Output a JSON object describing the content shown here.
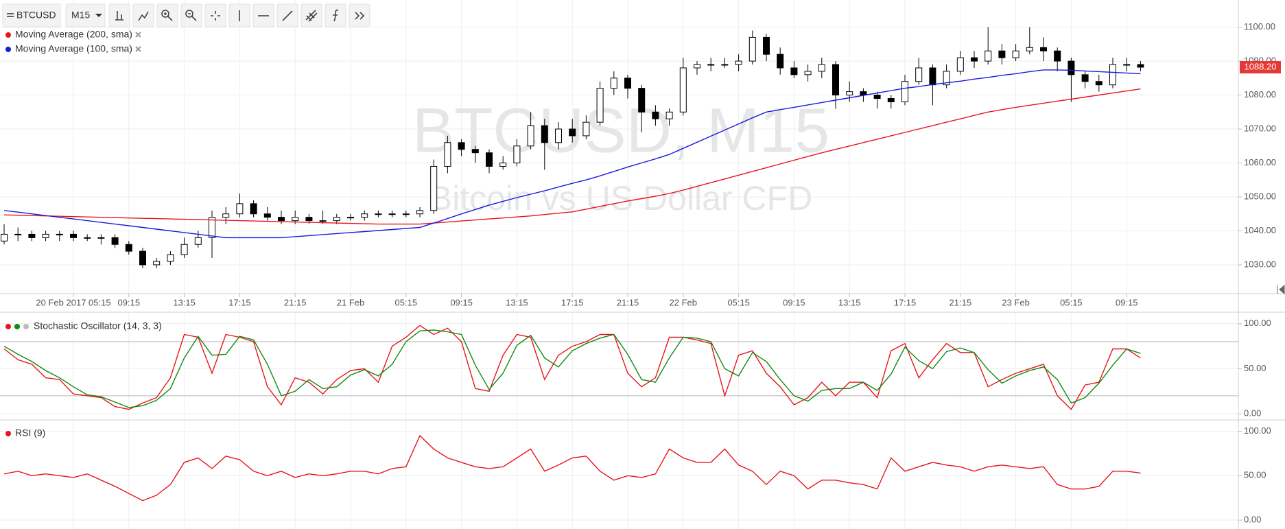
{
  "chart_data": [
    {
      "type": "candlestick",
      "title": "BTCUSD, M15",
      "subtitle": "Bitcoin vs US Dollar CFD",
      "symbol": "BTCUSD",
      "interval": "M15",
      "categories": [
        null,
        null,
        null,
        null,
        null,
        "20 Feb 2017 05:15",
        null,
        null,
        null,
        "09:15",
        null,
        null,
        null,
        "13:15",
        null,
        null,
        null,
        "17:15",
        null,
        null,
        null,
        "21:15",
        null,
        null,
        null,
        "21 Feb",
        null,
        null,
        null,
        "05:15",
        null,
        null,
        null,
        "09:15",
        null,
        null,
        null,
        "13:15",
        null,
        null,
        null,
        "17:15",
        null,
        null,
        null,
        "21:15",
        null,
        null,
        null,
        "22 Feb",
        null,
        null,
        null,
        "05:15",
        null,
        null,
        null,
        "09:15",
        null,
        null,
        null,
        "13:15",
        null,
        null,
        null,
        "17:15",
        null,
        null,
        null,
        "21:15",
        null,
        null,
        null,
        "23 Feb",
        null,
        null,
        null,
        "05:15",
        null,
        null,
        null,
        "09:15",
        null
      ],
      "candles": [
        [
          1037,
          1042,
          1036,
          1039
        ],
        [
          1039,
          1041,
          1037,
          1039
        ],
        [
          1039,
          1040,
          1037,
          1038
        ],
        [
          1038,
          1040,
          1037,
          1039
        ],
        [
          1039,
          1040,
          1037,
          1039
        ],
        [
          1039,
          1040,
          1037,
          1038
        ],
        [
          1038,
          1039,
          1037,
          1038
        ],
        [
          1038,
          1039,
          1036,
          1038
        ],
        [
          1038,
          1039,
          1035,
          1036
        ],
        [
          1036,
          1037,
          1033,
          1034
        ],
        [
          1034,
          1035,
          1029,
          1030
        ],
        [
          1030,
          1032,
          1029,
          1031
        ],
        [
          1031,
          1034,
          1030,
          1033
        ],
        [
          1033,
          1038,
          1032,
          1036
        ],
        [
          1036,
          1040,
          1035,
          1038
        ],
        [
          1038,
          1046,
          1032,
          1044
        ],
        [
          1044,
          1047,
          1042,
          1045
        ],
        [
          1045,
          1051,
          1044,
          1048
        ],
        [
          1048,
          1049,
          1044,
          1045
        ],
        [
          1045,
          1047,
          1043,
          1044
        ],
        [
          1044,
          1046,
          1042,
          1043
        ],
        [
          1043,
          1046,
          1042,
          1044
        ],
        [
          1044,
          1045,
          1042,
          1043
        ],
        [
          1043,
          1046,
          1042,
          1043
        ],
        [
          1043,
          1045,
          1042,
          1044
        ],
        [
          1044,
          1045,
          1043,
          1044
        ],
        [
          1044,
          1046,
          1043,
          1045
        ],
        [
          1045,
          1046,
          1044,
          1045
        ],
        [
          1045,
          1046,
          1044,
          1045
        ],
        [
          1045,
          1046,
          1044,
          1045
        ],
        [
          1045,
          1047,
          1044,
          1046
        ],
        [
          1046,
          1061,
          1045,
          1059
        ],
        [
          1059,
          1068,
          1057,
          1066
        ],
        [
          1066,
          1067,
          1062,
          1064
        ],
        [
          1064,
          1065,
          1060,
          1063
        ],
        [
          1063,
          1064,
          1057,
          1059
        ],
        [
          1059,
          1062,
          1058,
          1060
        ],
        [
          1060,
          1067,
          1059,
          1065
        ],
        [
          1065,
          1075,
          1064,
          1071
        ],
        [
          1071,
          1073,
          1058,
          1066
        ],
        [
          1066,
          1072,
          1064,
          1070
        ],
        [
          1070,
          1073,
          1066,
          1068
        ],
        [
          1068,
          1074,
          1067,
          1072
        ],
        [
          1072,
          1084,
          1071,
          1082
        ],
        [
          1082,
          1087,
          1080,
          1085
        ],
        [
          1085,
          1086,
          1079,
          1082
        ],
        [
          1082,
          1083,
          1069,
          1075
        ],
        [
          1075,
          1077,
          1071,
          1073
        ],
        [
          1073,
          1076,
          1071,
          1075
        ],
        [
          1075,
          1091,
          1074,
          1088
        ],
        [
          1088,
          1090,
          1086,
          1089
        ],
        [
          1089,
          1091,
          1087,
          1089
        ],
        [
          1089,
          1091,
          1088,
          1089
        ],
        [
          1089,
          1092,
          1087,
          1090
        ],
        [
          1090,
          1099,
          1089,
          1097
        ],
        [
          1097,
          1098,
          1090,
          1092
        ],
        [
          1092,
          1094,
          1086,
          1088
        ],
        [
          1088,
          1090,
          1085,
          1086
        ],
        [
          1086,
          1089,
          1084,
          1087
        ],
        [
          1087,
          1091,
          1085,
          1089
        ],
        [
          1089,
          1090,
          1076,
          1080
        ],
        [
          1080,
          1084,
          1078,
          1081
        ],
        [
          1081,
          1082,
          1078,
          1080
        ],
        [
          1080,
          1081,
          1076,
          1079
        ],
        [
          1079,
          1080,
          1076,
          1078
        ],
        [
          1078,
          1086,
          1077,
          1084
        ],
        [
          1084,
          1091,
          1083,
          1088
        ],
        [
          1088,
          1089,
          1077,
          1083
        ],
        [
          1083,
          1089,
          1082,
          1087
        ],
        [
          1087,
          1093,
          1086,
          1091
        ],
        [
          1091,
          1093,
          1088,
          1090
        ],
        [
          1090,
          1100,
          1089,
          1093
        ],
        [
          1093,
          1095,
          1089,
          1091
        ],
        [
          1091,
          1095,
          1090,
          1093
        ],
        [
          1093,
          1100,
          1092,
          1094
        ],
        [
          1094,
          1097,
          1090,
          1093
        ],
        [
          1093,
          1094,
          1087,
          1090
        ],
        [
          1090,
          1091,
          1078,
          1086
        ],
        [
          1086,
          1087,
          1082,
          1084
        ],
        [
          1084,
          1086,
          1081,
          1083
        ],
        [
          1083,
          1091,
          1082,
          1089
        ],
        [
          1089,
          1091,
          1087,
          1089
        ],
        [
          1089,
          1090,
          1087,
          1088.2
        ]
      ],
      "series": [
        {
          "name": "Moving Average (200, sma)",
          "color": "#e8141b",
          "values": [
            1044.7,
            1044.6,
            1044.5,
            1044.4,
            1044.3,
            1044.2,
            1044.1,
            1044.0,
            1043.9,
            1043.8,
            1043.7,
            1043.6,
            1043.5,
            1043.4,
            1043.3,
            1043.2,
            1043.1,
            1043.0,
            1042.9,
            1042.8,
            1042.7,
            1042.6,
            1042.5,
            1042.4,
            1042.3,
            1042.2,
            1042.1,
            1042.0,
            1042.0,
            1042.0,
            1042.0,
            1042.3,
            1042.6,
            1042.9,
            1043.2,
            1043.5,
            1043.8,
            1044.1,
            1044.4,
            1044.8,
            1045.2,
            1045.6,
            1046.4,
            1047.2,
            1048,
            1048.8,
            1049.5,
            1050.2,
            1051,
            1052,
            1053.1,
            1054.2,
            1055.3,
            1056.4,
            1057.5,
            1058.6,
            1059.7,
            1060.8,
            1061.9,
            1063,
            1064,
            1065,
            1066,
            1067,
            1068,
            1069,
            1070,
            1071,
            1072,
            1073,
            1074,
            1075,
            1075.7,
            1076.4,
            1077,
            1077.6,
            1078.2,
            1078.8,
            1079.4,
            1080,
            1080.6,
            1081.2,
            1081.8
          ]
        },
        {
          "name": "Moving Average (100, sma)",
          "color": "#1a1adc",
          "values": [
            1046,
            1045.5,
            1045,
            1044.5,
            1044,
            1043.5,
            1043,
            1042.5,
            1042,
            1041.5,
            1041,
            1040.5,
            1040,
            1039.5,
            1039,
            1038.5,
            1038,
            1038,
            1038,
            1038,
            1038,
            1038.3,
            1038.6,
            1038.9,
            1039.2,
            1039.5,
            1039.8,
            1040.1,
            1040.4,
            1040.7,
            1041,
            1042.3,
            1043.6,
            1045,
            1046.3,
            1047.6,
            1048.7,
            1049.8,
            1050.8,
            1051.8,
            1052.9,
            1054,
            1055,
            1056.2,
            1057.5,
            1058.8,
            1060,
            1061.2,
            1062.5,
            1064.3,
            1066.1,
            1067.9,
            1069.7,
            1071.5,
            1073.3,
            1075,
            1075.7,
            1076.4,
            1077.1,
            1077.8,
            1078.5,
            1079.2,
            1079.9,
            1080.6,
            1081.3,
            1082,
            1082.5,
            1083.1,
            1083.6,
            1084.1,
            1084.7,
            1085.2,
            1085.8,
            1086.3,
            1086.9,
            1087.4,
            1087.4,
            1087.3,
            1087.1,
            1086.9,
            1086.7,
            1086.5,
            1086.3
          ]
        }
      ],
      "ylim": [
        1021.5,
        1108
      ],
      "yticks": [
        {
          "value": 1030,
          "label": "1030.00"
        },
        {
          "value": 1040,
          "label": "1040.00"
        },
        {
          "value": 1050,
          "label": "1050.00"
        },
        {
          "value": 1060,
          "label": "1060.00"
        },
        {
          "value": 1070,
          "label": "1070.00"
        },
        {
          "value": 1080,
          "label": "1080.00"
        },
        {
          "value": 1090,
          "label": "1090.00"
        },
        {
          "value": 1100,
          "label": "1100.00"
        }
      ],
      "last_price": {
        "value": 1088.2,
        "label": "1088.20",
        "color": "#e53935"
      },
      "up_color": "#ffffff",
      "down_color": "#000000",
      "grid": true
    },
    {
      "type": "line",
      "title": "Stochastic Oscillator (14, 3, 3)",
      "series": [
        {
          "color": "#e8141b",
          "values": [
            72,
            60,
            55,
            40,
            38,
            22,
            20,
            18,
            8,
            5,
            12,
            18,
            40,
            88,
            85,
            45,
            88,
            85,
            80,
            30,
            10,
            40,
            35,
            22,
            38,
            48,
            50,
            35,
            75,
            85,
            98,
            88,
            95,
            80,
            28,
            25,
            65,
            88,
            85,
            38,
            65,
            75,
            80,
            88,
            88,
            45,
            30,
            40,
            85,
            85,
            82,
            78,
            20,
            65,
            70,
            45,
            30,
            10,
            18,
            35,
            20,
            35,
            35,
            18,
            70,
            78,
            40,
            60,
            78,
            68,
            68,
            30,
            38,
            45,
            50,
            55,
            20,
            5,
            32,
            35,
            72,
            72,
            62
          ]
        },
        {
          "color": "#108a10",
          "values": [
            75,
            66,
            58,
            48,
            40,
            30,
            21,
            19,
            13,
            7,
            9,
            15,
            28,
            62,
            86,
            65,
            66,
            86,
            82,
            55,
            20,
            25,
            38,
            28,
            30,
            43,
            49,
            42,
            55,
            80,
            92,
            93,
            91,
            88,
            54,
            27,
            45,
            76,
            87,
            62,
            52,
            70,
            78,
            84,
            88,
            66,
            38,
            35,
            62,
            85,
            84,
            80,
            50,
            42,
            68,
            58,
            38,
            20,
            14,
            26,
            28,
            28,
            35,
            26,
            44,
            74,
            59,
            50,
            69,
            73,
            68,
            49,
            34,
            42,
            48,
            52,
            38,
            12,
            18,
            34,
            54,
            72,
            67
          ]
        }
      ],
      "ylim": [
        -6,
        112
      ],
      "yticks": [
        {
          "value": 0,
          "label": "0.00"
        },
        {
          "value": 50,
          "label": "50.00"
        },
        {
          "value": 100,
          "label": "100.00"
        }
      ],
      "levels": [
        20,
        80
      ],
      "grid": true
    },
    {
      "type": "line",
      "title": "RSI (9)",
      "series": [
        {
          "color": "#e8141b",
          "values": [
            52,
            55,
            50,
            52,
            50,
            48,
            52,
            45,
            38,
            30,
            22,
            28,
            40,
            65,
            70,
            58,
            72,
            68,
            55,
            50,
            55,
            48,
            52,
            50,
            52,
            55,
            55,
            52,
            58,
            60,
            95,
            80,
            70,
            65,
            60,
            58,
            60,
            70,
            80,
            55,
            62,
            70,
            72,
            55,
            45,
            50,
            48,
            52,
            80,
            70,
            65,
            65,
            80,
            62,
            55,
            40,
            55,
            50,
            35,
            45,
            45,
            42,
            40,
            35,
            70,
            55,
            60,
            65,
            62,
            60,
            55,
            60,
            62,
            60,
            58,
            60,
            40,
            35,
            35,
            38,
            55,
            55,
            53
          ]
        }
      ],
      "ylim": [
        -10,
        112
      ],
      "yticks": [
        {
          "value": 0,
          "label": "0.00"
        },
        {
          "value": 50,
          "label": "50.00"
        },
        {
          "value": 100,
          "label": "100.00"
        }
      ],
      "grid": true
    }
  ]
}
